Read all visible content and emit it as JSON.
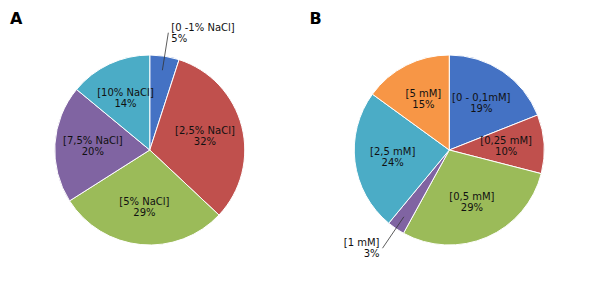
{
  "chart_data": [
    {
      "type": "pie",
      "title": "A",
      "categories": [
        "[0 -1% NaCl]",
        "[2,5% NaCl]",
        "[5% NaCl]",
        "[7,5% NaCl]",
        "[10% NaCl]"
      ],
      "values": [
        5,
        32,
        29,
        20,
        14
      ],
      "value_labels": [
        "5%",
        "32%",
        "29%",
        "20%",
        "14%"
      ],
      "colors": [
        "#4472C4",
        "#C0504D",
        "#9BBB59",
        "#8064A2",
        "#4BACC6"
      ],
      "data_labels": true
    },
    {
      "type": "pie",
      "title": "B",
      "categories": [
        "[0 - 0,1mM]",
        "[0,25 mM]",
        "[0,5 mM]",
        "[1 mM]",
        "[2,5 mM]",
        "[5 mM]"
      ],
      "values": [
        19,
        10,
        29,
        3,
        24,
        15
      ],
      "value_labels": [
        "19%",
        "10%",
        "29%",
        "3%",
        "24%",
        "15%"
      ],
      "colors": [
        "#4472C4",
        "#C0504D",
        "#9BBB59",
        "#8064A2",
        "#4BACC6",
        "#F79646"
      ],
      "data_labels": true
    }
  ]
}
